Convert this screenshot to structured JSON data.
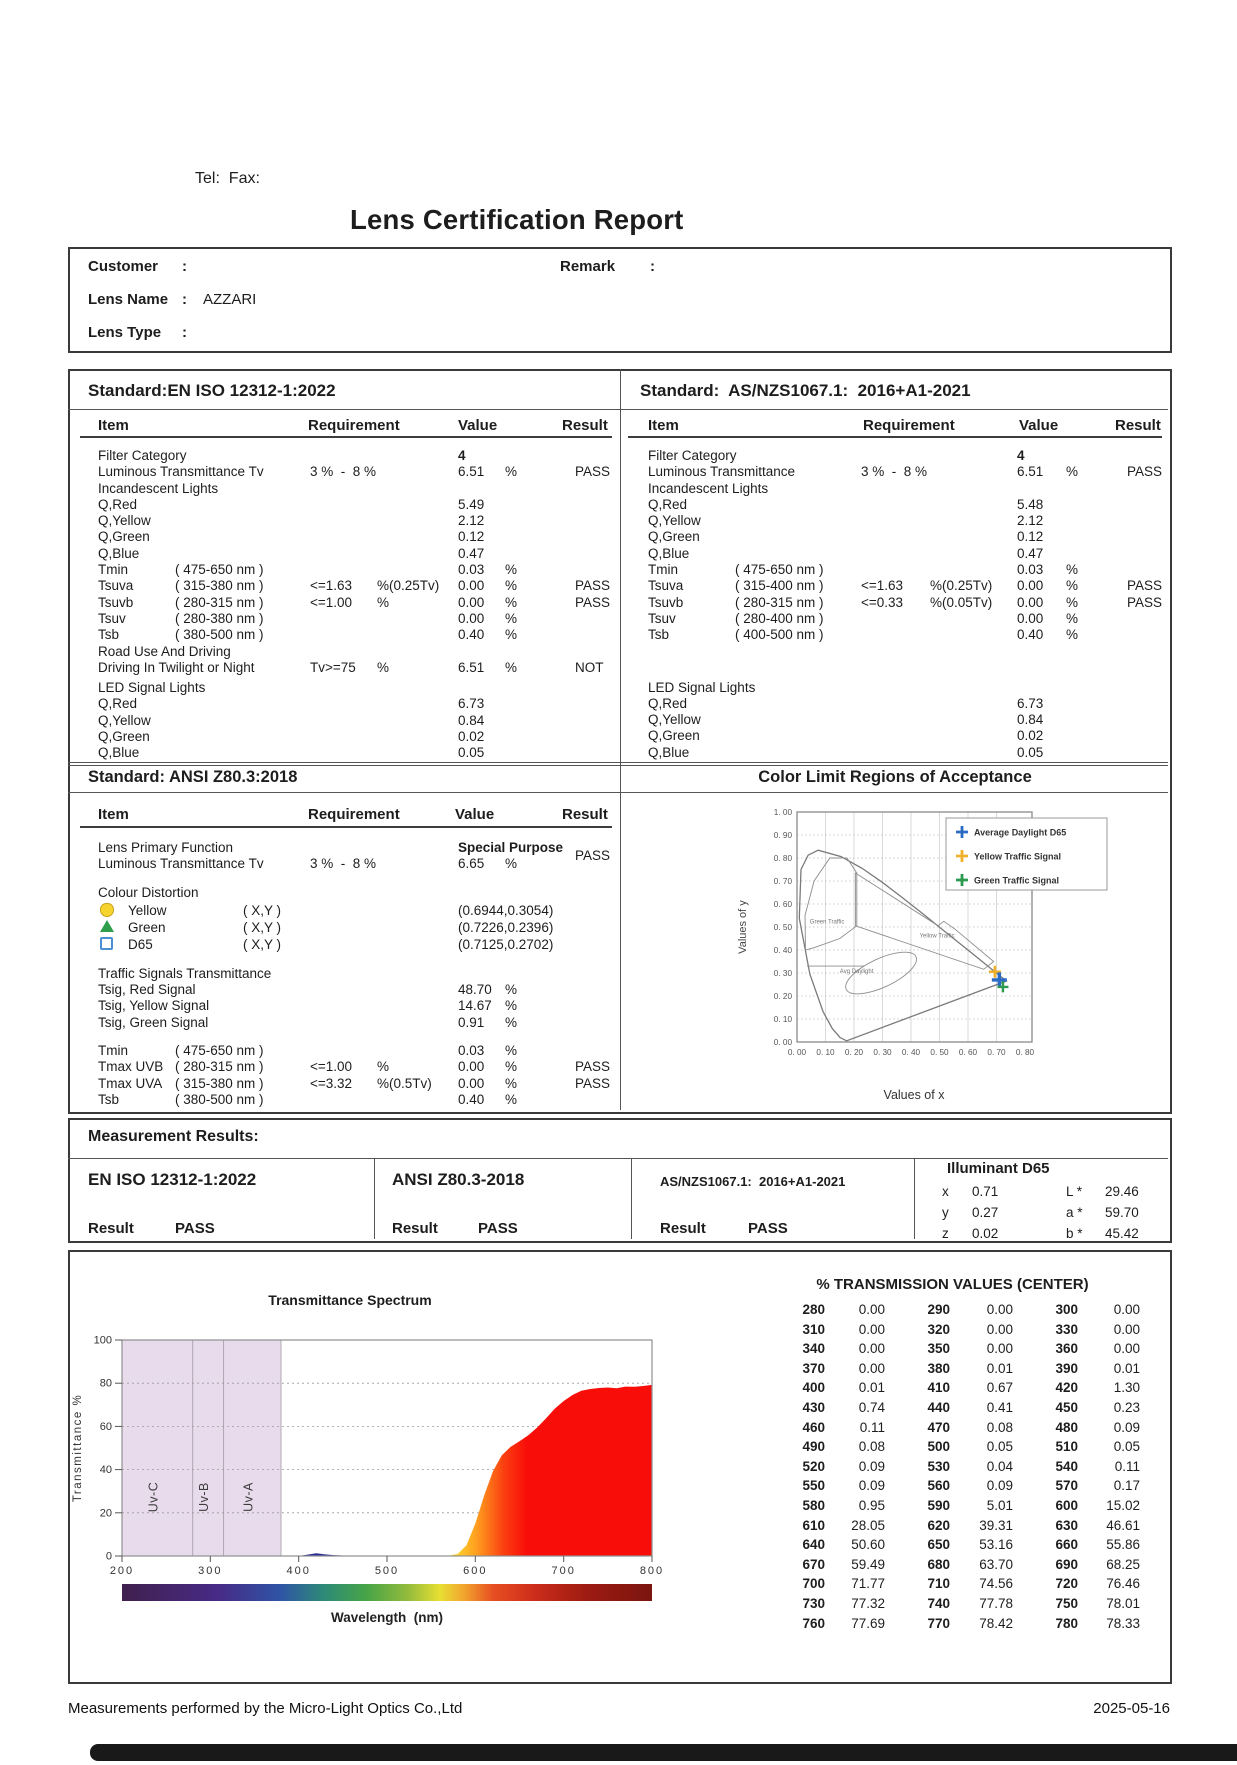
{
  "page": {
    "tel_fax": "Tel:  Fax:",
    "title": "Lens Certification Report",
    "footer_left": "Measurements performed by the Micro-Light Optics Co.,Ltd",
    "footer_date": "2025-05-16"
  },
  "info": {
    "rows": [
      {
        "label": "Customer",
        "colon": ":",
        "value": ""
      },
      {
        "label": "Lens Name",
        "colon": ":",
        "value": "AZZARI"
      },
      {
        "label": "Lens Type",
        "colon": ":",
        "value": ""
      }
    ],
    "remark_label": "Remark",
    "remark_colon": ":",
    "remark_value": ""
  },
  "headers": {
    "item": "Item",
    "requirement": "Requirement",
    "value": "Value",
    "result": "Result"
  },
  "std_en": {
    "title": "Standard:EN ISO 12312-1:2022",
    "rows": [
      {
        "item": "Filter Category",
        "value": "4",
        "cls": "bv"
      },
      {
        "item": "Luminous Transmittance Tv",
        "req": "3 %  -  8 %",
        "value": "6.51",
        "unit": "%",
        "result": "PASS"
      },
      {
        "item": "Incandescent Lights"
      },
      {
        "item": "Q,Red",
        "value": "5.49"
      },
      {
        "item": "Q,Yellow",
        "value": "2.12"
      },
      {
        "item": "Q,Green",
        "value": "0.12"
      },
      {
        "item": "Q,Blue",
        "value": "0.47"
      },
      {
        "item": "Tmin",
        "range": "( 475-650 nm )",
        "value": "0.03",
        "unit": "%"
      },
      {
        "item": "Tsuva",
        "range": "( 315-380 nm )",
        "req": "<=1.63",
        "requnit": "%(0.25Tv)",
        "value": "0.00",
        "unit": "%",
        "result": "PASS"
      },
      {
        "item": "Tsuvb",
        "range": "( 280-315 nm )",
        "req": "<=1.00",
        "requnit": "%",
        "value": "0.00",
        "unit": "%",
        "result": "PASS"
      },
      {
        "item": "Tsuv",
        "range": "( 280-380 nm )",
        "value": "0.00",
        "unit": "%"
      },
      {
        "item": "Tsb",
        "range": "( 380-500 nm )",
        "value": "0.40",
        "unit": "%"
      },
      {
        "item": "Road Use And Driving"
      },
      {
        "item": "Driving In Twilight or Night",
        "req": "Tv>=75",
        "requnit": "%",
        "value": "6.51",
        "unit": "%",
        "result": "NOT"
      },
      {
        "item": "LED Signal Lights",
        "cls": "g4"
      },
      {
        "item": "Q,Red",
        "value": "6.73"
      },
      {
        "item": "Q,Yellow",
        "value": "0.84"
      },
      {
        "item": "Q,Green",
        "value": "0.02"
      },
      {
        "item": "Q,Blue",
        "value": "0.05"
      }
    ]
  },
  "std_as": {
    "title": "Standard:  AS/NZS1067.1:  2016+A1-2021",
    "rows": [
      {
        "item": "Filter Category",
        "value": "4",
        "cls": "bv"
      },
      {
        "item": "Luminous Transmittance",
        "req": "3 %  -  8 %",
        "value": "6.51",
        "unit": "%",
        "result": "PASS"
      },
      {
        "item": "Incandescent Lights"
      },
      {
        "item": "Q,Red",
        "value": "5.48"
      },
      {
        "item": "Q,Yellow",
        "value": "2.12"
      },
      {
        "item": "Q,Green",
        "value": "0.12"
      },
      {
        "item": "Q,Blue",
        "value": "0.47"
      },
      {
        "item": "Tmin",
        "range": "( 475-650 nm )",
        "value": "0.03",
        "unit": "%"
      },
      {
        "item": "Tsuva",
        "range": "( 315-400 nm )",
        "req": "<=1.63",
        "requnit": "%(0.25Tv)",
        "value": "0.00",
        "unit": "%",
        "result": "PASS"
      },
      {
        "item": "Tsuvb",
        "range": "( 280-315 nm )",
        "req": "<=0.33",
        "requnit": "%(0.05Tv)",
        "value": "0.00",
        "unit": "%",
        "result": "PASS"
      },
      {
        "item": "Tsuv",
        "range": "( 280-400 nm )",
        "value": "0.00",
        "unit": "%"
      },
      {
        "item": "Tsb",
        "range": "( 400-500 nm )",
        "value": "0.40",
        "unit": "%"
      },
      {
        "item": "LED Signal Lights",
        "cls": "g36"
      },
      {
        "item": "Q,Red",
        "value": "6.73"
      },
      {
        "item": "Q,Yellow",
        "value": "0.84"
      },
      {
        "item": "Q,Green",
        "value": "0.02"
      },
      {
        "item": "Q,Blue",
        "value": "0.05"
      }
    ]
  },
  "std_ansi": {
    "title": "Standard: ANSI Z80.3:2018",
    "rows": [
      {
        "item": "Lens Primary Function",
        "value": "Special Purpose",
        "result": "PASS",
        "cls": "bv res-mid"
      },
      {
        "item": "Luminous Transmittance Tv",
        "req": "3 %  -  8 %",
        "value": "6.65",
        "unit": "%"
      },
      {
        "item": "Colour Distortion",
        "cls": "g12"
      },
      {
        "item": "Yellow",
        "range": "( X,Y )",
        "value": "(0.6944,0.3054)",
        "icon": "yellow",
        "cls": "iconrow g2"
      },
      {
        "item": "Green",
        "range": "( X,Y )",
        "value": "(0.7226,0.2396)",
        "icon": "green",
        "cls": "iconrow"
      },
      {
        "item": "D65",
        "range": "( X,Y )",
        "value": "(0.7125,0.2702)",
        "icon": "d65",
        "cls": "iconrow"
      },
      {
        "item": "Traffic Signals Transmittance",
        "cls": "g12"
      },
      {
        "item": "Tsig, Red Signal",
        "value": "48.70",
        "unit": "%"
      },
      {
        "item": "Tsig, Yellow Signal",
        "value": "14.67",
        "unit": "%"
      },
      {
        "item": "Tsig, Green Signal",
        "value": "0.91",
        "unit": "%"
      },
      {
        "item": "Tmin",
        "range": "( 475-650 nm )",
        "value": "0.03",
        "unit": "%",
        "cls": "g12"
      },
      {
        "item": "Tmax UVB",
        "range": "( 280-315 nm )",
        "req": "<=1.00",
        "requnit": "%",
        "value": "0.00",
        "unit": "%",
        "result": "PASS"
      },
      {
        "item": "Tmax UVA",
        "range": "( 315-380 nm )",
        "req": "<=3.32",
        "requnit": "%(0.5Tv)",
        "value": "0.00",
        "unit": "%",
        "result": "PASS"
      },
      {
        "item": "Tsb",
        "range": "( 380-500 nm )",
        "value": "0.40",
        "unit": "%"
      }
    ]
  },
  "color_limit": {
    "title": "Color Limit Regions of Acceptance"
  },
  "measurement": {
    "title": "Measurement Results:",
    "result_label": "Result",
    "columns": [
      {
        "standard": "EN ISO 12312-1:2022",
        "result": "PASS"
      },
      {
        "standard": "ANSI Z80.3-2018",
        "result": "PASS"
      },
      {
        "standard": "AS/NZS1067.1:  2016+A1-2021",
        "result": "PASS"
      }
    ],
    "illuminant": {
      "title": "Illuminant D65",
      "rows": [
        {
          "k1": "x",
          "v1": "0.71",
          "k2": "L *",
          "v2": "29.46"
        },
        {
          "k1": "y",
          "v1": "0.27",
          "k2": "a *",
          "v2": "59.70"
        },
        {
          "k1": "z",
          "v1": "0.02",
          "k2": "b *",
          "v2": "45.42"
        }
      ]
    }
  },
  "transmission": {
    "title": "% TRANSMISSION VALUES (CENTER)",
    "rows": [
      [
        "280",
        "0.00",
        "290",
        "0.00",
        "300",
        "0.00"
      ],
      [
        "310",
        "0.00",
        "320",
        "0.00",
        "330",
        "0.00"
      ],
      [
        "340",
        "0.00",
        "350",
        "0.00",
        "360",
        "0.00"
      ],
      [
        "370",
        "0.00",
        "380",
        "0.01",
        "390",
        "0.01"
      ],
      [
        "400",
        "0.01",
        "410",
        "0.67",
        "420",
        "1.30"
      ],
      [
        "430",
        "0.74",
        "440",
        "0.41",
        "450",
        "0.23"
      ],
      [
        "460",
        "0.11",
        "470",
        "0.08",
        "480",
        "0.09"
      ],
      [
        "490",
        "0.08",
        "500",
        "0.05",
        "510",
        "0.05"
      ],
      [
        "520",
        "0.09",
        "530",
        "0.04",
        "540",
        "0.11"
      ],
      [
        "550",
        "0.09",
        "560",
        "0.09",
        "570",
        "0.17"
      ],
      [
        "580",
        "0.95",
        "590",
        "5.01",
        "600",
        "15.02"
      ],
      [
        "610",
        "28.05",
        "620",
        "39.31",
        "630",
        "46.61"
      ],
      [
        "640",
        "50.60",
        "650",
        "53.16",
        "660",
        "55.86"
      ],
      [
        "670",
        "59.49",
        "680",
        "63.70",
        "690",
        "68.25"
      ],
      [
        "700",
        "71.77",
        "710",
        "74.56",
        "720",
        "76.46"
      ],
      [
        "730",
        "77.32",
        "740",
        "77.78",
        "750",
        "78.01"
      ],
      [
        "760",
        "77.69",
        "770",
        "78.42",
        "780",
        "78.33"
      ]
    ]
  },
  "chart_data": [
    {
      "type": "scatter",
      "title": "Color Limit Regions of Acceptance",
      "xlabel": "Values of x",
      "ylabel": "Values of y",
      "xlim": [
        0,
        0.8
      ],
      "ylim": [
        0,
        1.0
      ],
      "xstep": 0.1,
      "ystep": 0.1,
      "grid": true,
      "legend_position": "top-right",
      "legend": [
        {
          "label": "Average Daylight D65",
          "color": "#2b6bc4"
        },
        {
          "label": "Yellow Traffic Signal",
          "color": "#f0b22c"
        },
        {
          "label": "Green Traffic Signal",
          "color": "#2a9a4e"
        }
      ],
      "points": [
        {
          "name": "Average Daylight D65",
          "x": 0.71,
          "y": 0.27,
          "color": "#2b6bc4"
        },
        {
          "name": "Yellow Traffic Signal",
          "x": 0.6944,
          "y": 0.3054,
          "color": "#f0b22c"
        },
        {
          "name": "Green Traffic Signal",
          "x": 0.7226,
          "y": 0.2396,
          "color": "#2a9a4e"
        }
      ],
      "region_labels": [
        {
          "text": "Green Traffic",
          "x": 0.045,
          "y": 0.515
        },
        {
          "text": "Yellow Traffic",
          "x": 0.43,
          "y": 0.455
        },
        {
          "text": "Avg Daylight",
          "x": 0.15,
          "y": 0.3
        }
      ],
      "locus": [
        [
          0.1741,
          0.005
        ],
        [
          0.15,
          0.02
        ],
        [
          0.1441,
          0.0297
        ],
        [
          0.1241,
          0.0578
        ],
        [
          0.0913,
          0.1327
        ],
        [
          0.0454,
          0.295
        ],
        [
          0.0082,
          0.5384
        ],
        [
          0.0139,
          0.7502
        ],
        [
          0.0389,
          0.812
        ],
        [
          0.0743,
          0.8338
        ],
        [
          0.1547,
          0.8059
        ],
        [
          0.2296,
          0.7543
        ],
        [
          0.3016,
          0.6923
        ],
        [
          0.3731,
          0.6245
        ],
        [
          0.4441,
          0.5547
        ],
        [
          0.5125,
          0.4866
        ],
        [
          0.5752,
          0.4242
        ],
        [
          0.627,
          0.3725
        ],
        [
          0.6658,
          0.334
        ],
        [
          0.6915,
          0.3083
        ],
        [
          0.7347,
          0.2653
        ]
      ],
      "regions": [
        {
          "name": "green-traffic-region",
          "points": [
            [
              0.03,
              0.4
            ],
            [
              0.028,
              0.55
            ],
            [
              0.06,
              0.7
            ],
            [
              0.115,
              0.8
            ],
            [
              0.175,
              0.8
            ],
            [
              0.21,
              0.735
            ],
            [
              0.21,
              0.505
            ],
            [
              0.15,
              0.45
            ],
            [
              0.06,
              0.41
            ]
          ]
        },
        {
          "name": "yellow-traffic-wedge",
          "points": [
            [
              0.205,
              0.735
            ],
            [
              0.495,
              0.505
            ],
            [
              0.515,
              0.525
            ],
            [
              0.555,
              0.49
            ],
            [
              0.69,
              0.35
            ],
            [
              0.655,
              0.316
            ],
            [
              0.205,
              0.505
            ]
          ]
        }
      ],
      "daylight_ellipse": {
        "cx": 0.295,
        "cy": 0.3,
        "rx": 0.135,
        "ry": 0.062,
        "rot": -25
      },
      "guide_line": [
        [
          0.035,
          0.33
        ],
        [
          0.235,
          0.33
        ]
      ]
    },
    {
      "type": "area",
      "title": "Transmittance Spectrum",
      "xlabel": "Wavelength  (nm)",
      "ylabel": "Transmittance %",
      "xlim": [
        200,
        800
      ],
      "ylim": [
        0,
        100
      ],
      "x_ticks": [
        200,
        300,
        400,
        500,
        600,
        700,
        800
      ],
      "y_ticks": [
        0,
        20,
        40,
        60,
        80,
        100
      ],
      "uv_bands": [
        {
          "label": "Uv-C",
          "from": 200,
          "to": 280
        },
        {
          "label": "Uv-B",
          "from": 280,
          "to": 315
        },
        {
          "label": "Uv-A",
          "from": 315,
          "to": 380
        }
      ],
      "points": [
        [
          280,
          0
        ],
        [
          290,
          0
        ],
        [
          300,
          0
        ],
        [
          310,
          0
        ],
        [
          320,
          0
        ],
        [
          330,
          0
        ],
        [
          340,
          0
        ],
        [
          350,
          0
        ],
        [
          360,
          0
        ],
        [
          370,
          0
        ],
        [
          380,
          0.01
        ],
        [
          390,
          0.01
        ],
        [
          400,
          0.01
        ],
        [
          410,
          0.67
        ],
        [
          420,
          1.3
        ],
        [
          430,
          0.74
        ],
        [
          440,
          0.41
        ],
        [
          450,
          0.23
        ],
        [
          460,
          0.11
        ],
        [
          470,
          0.08
        ],
        [
          480,
          0.09
        ],
        [
          490,
          0.08
        ],
        [
          500,
          0.05
        ],
        [
          510,
          0.05
        ],
        [
          520,
          0.09
        ],
        [
          530,
          0.04
        ],
        [
          540,
          0.11
        ],
        [
          550,
          0.09
        ],
        [
          560,
          0.09
        ],
        [
          570,
          0.17
        ],
        [
          580,
          0.95
        ],
        [
          590,
          5.01
        ],
        [
          600,
          15.02
        ],
        [
          610,
          28.05
        ],
        [
          620,
          39.31
        ],
        [
          630,
          46.61
        ],
        [
          640,
          50.6
        ],
        [
          650,
          53.16
        ],
        [
          660,
          55.86
        ],
        [
          670,
          59.49
        ],
        [
          680,
          63.7
        ],
        [
          690,
          68.25
        ],
        [
          700,
          71.77
        ],
        [
          710,
          74.56
        ],
        [
          720,
          76.46
        ],
        [
          730,
          77.32
        ],
        [
          740,
          77.78
        ],
        [
          750,
          78.01
        ],
        [
          760,
          77.69
        ],
        [
          770,
          78.42
        ],
        [
          780,
          78.33
        ]
      ]
    }
  ]
}
